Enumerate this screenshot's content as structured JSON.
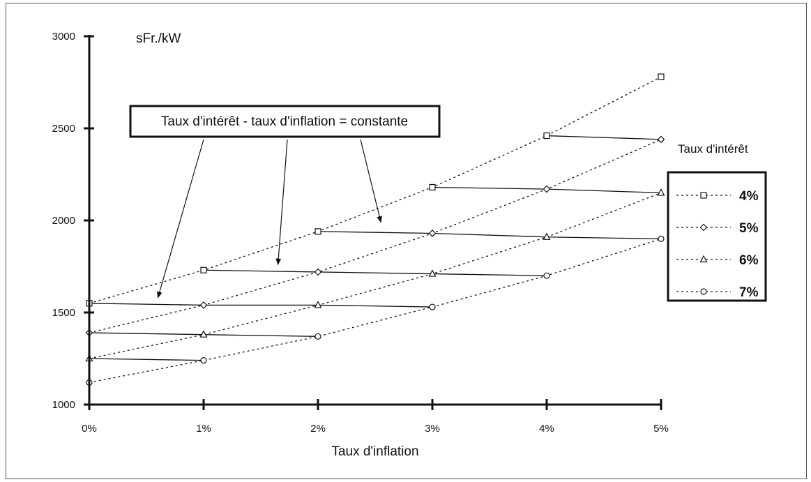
{
  "chart_data": {
    "type": "line",
    "y_unit_label": "sFr./kW",
    "xlabel": "Taux d'inflation",
    "x": [
      0,
      1,
      2,
      3,
      4,
      5
    ],
    "x_tick_labels": [
      "0%",
      "1%",
      "2%",
      "3%",
      "4%",
      "5%"
    ],
    "xlim": [
      0,
      5
    ],
    "ylim": [
      1000,
      3000
    ],
    "y_ticks": [
      1000,
      1500,
      2000,
      2500,
      3000
    ],
    "y_tick_labels": [
      "1000",
      "1500",
      "2000",
      "2500",
      "3000"
    ],
    "grid": false,
    "legend_title": "Taux d'intérêt",
    "legend_position": "right",
    "series": [
      {
        "name": "4%",
        "marker": "square",
        "values": [
          1550,
          1730,
          1940,
          2180,
          2460,
          2780
        ]
      },
      {
        "name": "5%",
        "marker": "diamond",
        "values": [
          1390,
          1540,
          1720,
          1930,
          2170,
          2440
        ]
      },
      {
        "name": "6%",
        "marker": "triangle",
        "values": [
          1250,
          1380,
          1540,
          1710,
          1910,
          2150
        ]
      },
      {
        "name": "7%",
        "marker": "circle",
        "values": [
          1120,
          1240,
          1370,
          1530,
          1700,
          1900
        ]
      }
    ],
    "constant_difference_links": [
      {
        "x0": 0,
        "y0": 1550,
        "x1": 1,
        "y1": 1540
      },
      {
        "x0": 0,
        "y0": 1390,
        "x1": 1,
        "y1": 1380
      },
      {
        "x0": 0,
        "y0": 1250,
        "x1": 1,
        "y1": 1240
      },
      {
        "x0": 1,
        "y0": 1730,
        "x1": 2,
        "y1": 1720
      },
      {
        "x0": 1,
        "y0": 1540,
        "x1": 2,
        "y1": 1540
      },
      {
        "x0": 1,
        "y0": 1380,
        "x1": 2,
        "y1": 1370
      },
      {
        "x0": 2,
        "y0": 1940,
        "x1": 3,
        "y1": 1930
      },
      {
        "x0": 2,
        "y0": 1720,
        "x1": 3,
        "y1": 1710
      },
      {
        "x0": 2,
        "y0": 1540,
        "x1": 3,
        "y1": 1530
      },
      {
        "x0": 3,
        "y0": 2180,
        "x1": 4,
        "y1": 2170
      },
      {
        "x0": 3,
        "y0": 1930,
        "x1": 4,
        "y1": 1910
      },
      {
        "x0": 3,
        "y0": 1710,
        "x1": 4,
        "y1": 1700
      },
      {
        "x0": 4,
        "y0": 2460,
        "x1": 5,
        "y1": 2440
      },
      {
        "x0": 4,
        "y0": 2170,
        "x1": 5,
        "y1": 2150
      },
      {
        "x0": 4,
        "y0": 1910,
        "x1": 5,
        "y1": 1900
      }
    ],
    "annotation": {
      "text": "Taux d'intérêt - taux d'inflation = constante",
      "arrow_targets": [
        {
          "x": 0.6,
          "y": 1580
        },
        {
          "x": 1.65,
          "y": 1760
        },
        {
          "x": 2.55,
          "y": 1990
        }
      ]
    },
    "colors": {
      "ink": "#111111",
      "frame": "#555555",
      "background": "#ffffff"
    }
  }
}
